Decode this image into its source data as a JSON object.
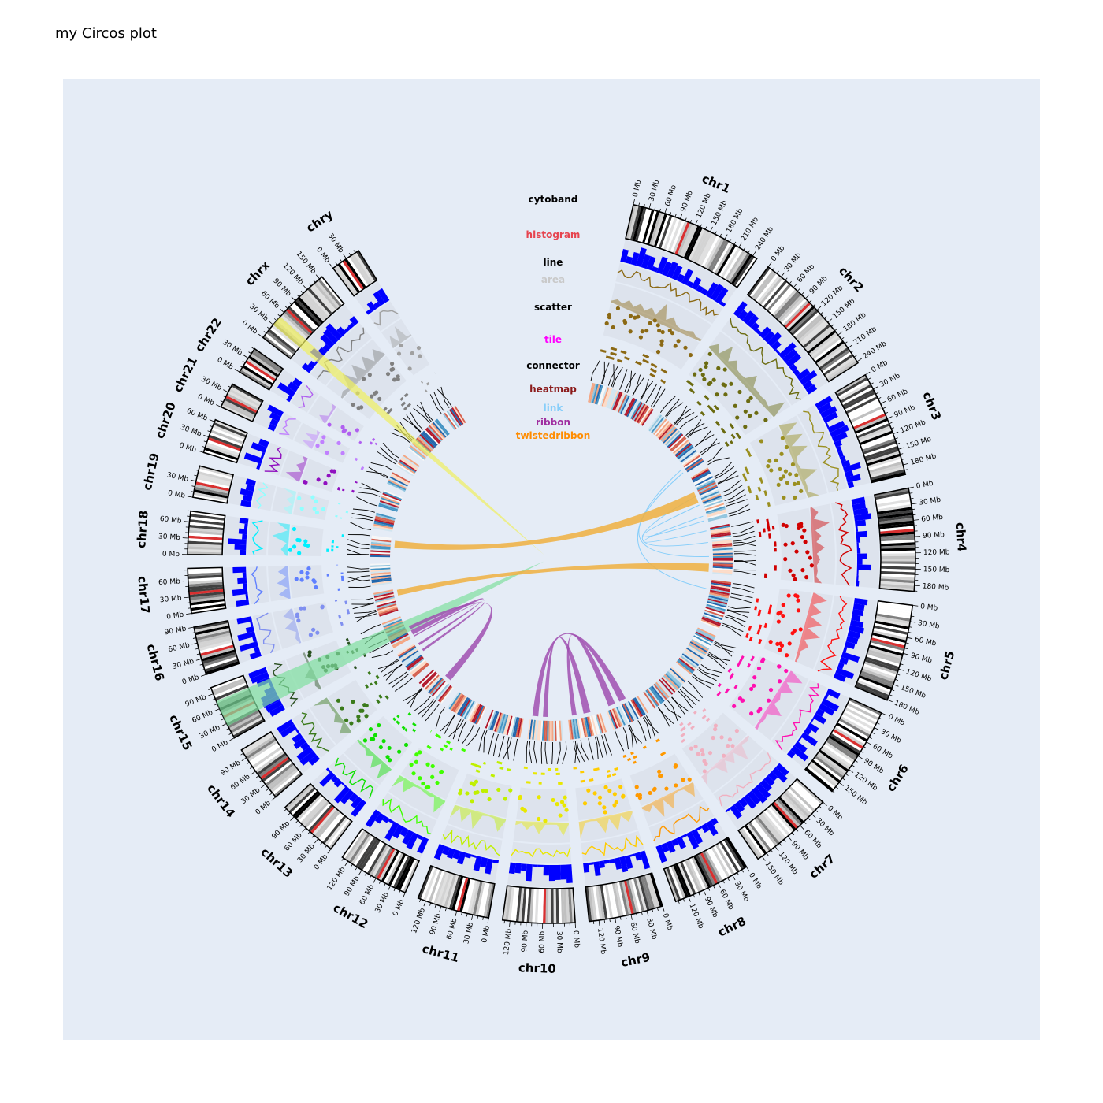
{
  "page": {
    "title": "my Circos plot"
  },
  "legend": [
    {
      "key": "cytoband",
      "label": "cytoband",
      "color": "#000000"
    },
    {
      "key": "histogram",
      "label": "histogram",
      "color": "#e6444f"
    },
    {
      "key": "line",
      "label": "line",
      "color": "#000000"
    },
    {
      "key": "area",
      "label": "area",
      "color": "#c9c9c9"
    },
    {
      "key": "scatter",
      "label": "scatter",
      "color": "#000000"
    },
    {
      "key": "tile",
      "label": "tile",
      "color": "#ff00ff"
    },
    {
      "key": "connector",
      "label": "connector",
      "color": "#000000"
    },
    {
      "key": "heatmap",
      "label": "heatmap",
      "color": "#8b1a1a"
    },
    {
      "key": "link",
      "label": "link",
      "color": "#87cefa"
    },
    {
      "key": "ribbon",
      "label": "ribbon",
      "color": "#a030a0"
    },
    {
      "key": "twistedribbon",
      "label": "twistedribbon",
      "color": "#ff8c00"
    }
  ],
  "chart_data": {
    "type": "circos",
    "chromosomes": [
      {
        "name": "chr1",
        "length_mb": 249,
        "color": "#8b6914"
      },
      {
        "name": "chr2",
        "length_mb": 243,
        "color": "#6b6b10"
      },
      {
        "name": "chr3",
        "length_mb": 198,
        "color": "#9a8f20"
      },
      {
        "name": "chr4",
        "length_mb": 191,
        "color": "#d00000"
      },
      {
        "name": "chr5",
        "length_mb": 181,
        "color": "#ff1010"
      },
      {
        "name": "chr6",
        "length_mb": 171,
        "color": "#ff10b0"
      },
      {
        "name": "chr7",
        "length_mb": 159,
        "color": "#f0b0c0"
      },
      {
        "name": "chr8",
        "length_mb": 145,
        "color": "#ff9900"
      },
      {
        "name": "chr9",
        "length_mb": 138,
        "color": "#ffcc00"
      },
      {
        "name": "chr10",
        "length_mb": 134,
        "color": "#e8e800"
      },
      {
        "name": "chr11",
        "length_mb": 135,
        "color": "#c0f000"
      },
      {
        "name": "chr12",
        "length_mb": 133,
        "color": "#40ff00"
      },
      {
        "name": "chr13",
        "length_mb": 114,
        "color": "#10e000"
      },
      {
        "name": "chr14",
        "length_mb": 107,
        "color": "#3a7a1a"
      },
      {
        "name": "chr15",
        "length_mb": 102,
        "color": "#2a5020"
      },
      {
        "name": "chr16",
        "length_mb": 90,
        "color": "#8090f0"
      },
      {
        "name": "chr17",
        "length_mb": 83,
        "color": "#6080ff"
      },
      {
        "name": "chr18",
        "length_mb": 80,
        "color": "#00f0ff"
      },
      {
        "name": "chr19",
        "length_mb": 59,
        "color": "#90ffff"
      },
      {
        "name": "chr20",
        "length_mb": 64,
        "color": "#9010c0"
      },
      {
        "name": "chr21",
        "length_mb": 47,
        "color": "#c080ff"
      },
      {
        "name": "chr22",
        "length_mb": 51,
        "color": "#b060f0"
      },
      {
        "name": "chrx",
        "length_mb": 156,
        "color": "#808080"
      },
      {
        "name": "chry",
        "length_mb": 57,
        "color": "#a0a0a0"
      }
    ],
    "tick_unit": "Mb",
    "tick_interval_mb": 30,
    "tracks": [
      "cytoband",
      "histogram",
      "line",
      "area",
      "scatter",
      "tile",
      "connector",
      "heatmap"
    ],
    "histogram_color": "#0000ff",
    "link_color": "#87cefa",
    "ribbon_color": "#a050b0",
    "twistedribbon_color": "#f0b040",
    "highlights": [
      {
        "chrom": "chrx",
        "start_mb": 30,
        "end_mb": 50,
        "color": "#f0f060"
      },
      {
        "chrom": "chr15",
        "start_mb": 25,
        "end_mb": 75,
        "color": "#80e0a0"
      }
    ]
  }
}
